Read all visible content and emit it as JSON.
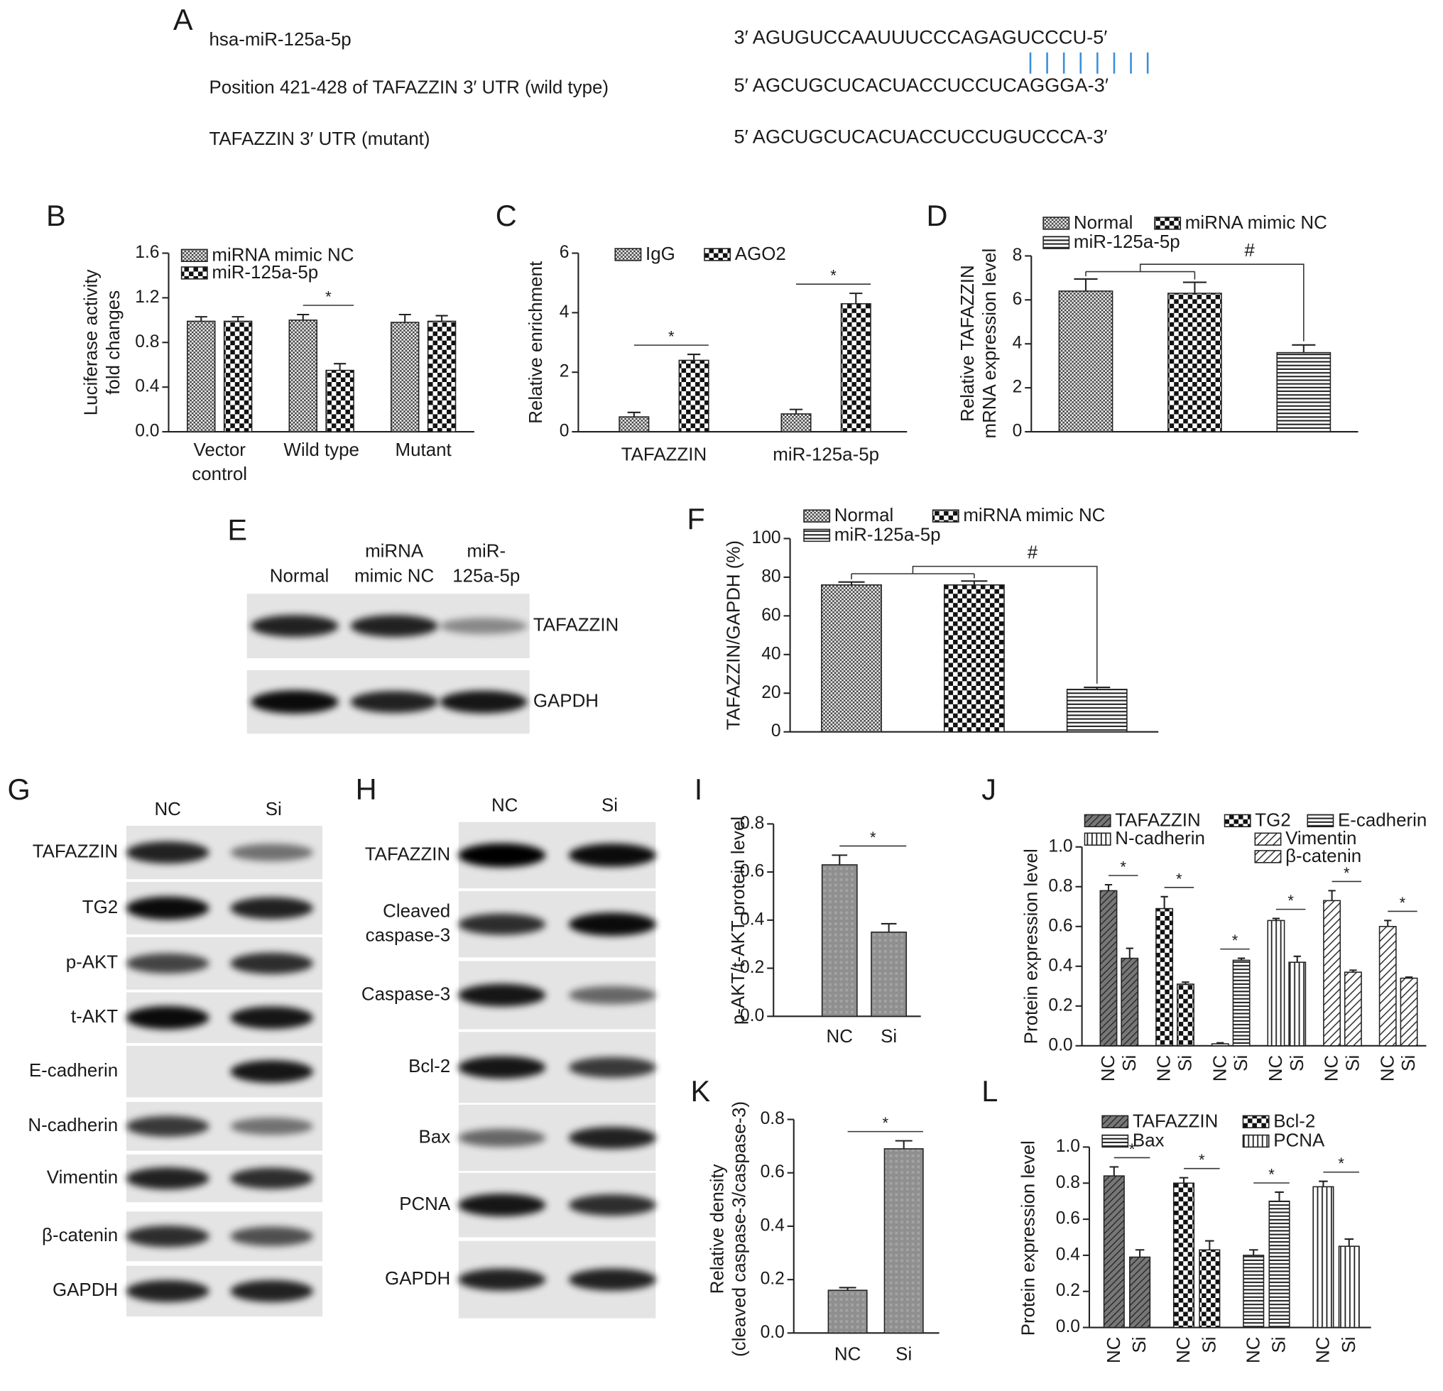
{
  "panel_a": {
    "label": "A",
    "rows": [
      {
        "name": "hsa-miR-125a-5p",
        "sequence": "3′ AGUGUCCAAUUUCCCAGAGUCCCU-5′"
      },
      {
        "name": "Position 421-428 of TAFAZZIN 3′ UTR (wild type)",
        "sequence": "5′ AGCUGCUCACUACCUCCUCAGGGA-3′"
      },
      {
        "name": "TAFAZZIN 3′ UTR (mutant)",
        "sequence": "5′  AGCUGCUCACUACCUCCUGUCCCA-3′"
      }
    ]
  },
  "blots": [
    {
      "label": "E",
      "lanes": [
        [
          "Normal"
        ],
        [
          "miRNA",
          "mimic NC"
        ],
        [
          "miR-",
          "125a-5p"
        ]
      ],
      "rows": [
        [
          "TAFAZZIN"
        ],
        [
          "GAPDH"
        ]
      ]
    },
    {
      "label": "G",
      "lanes": [
        [
          "NC"
        ],
        [
          "Si"
        ]
      ],
      "rows": [
        [
          "TAFAZZIN"
        ],
        [
          "TG2"
        ],
        [
          "p-AKT"
        ],
        [
          "t-AKT"
        ],
        [
          "E-cadherin"
        ],
        [
          "N-cadherin"
        ],
        [
          "Vimentin"
        ],
        [
          "β-catenin"
        ],
        [
          "GAPDH"
        ]
      ]
    },
    {
      "label": "H",
      "lanes": [
        [
          "NC"
        ],
        [
          "Si"
        ]
      ],
      "rows": [
        [
          "TAFAZZIN"
        ],
        [
          "Cleaved",
          "caspase-3"
        ],
        [
          "Caspase-3"
        ],
        [
          "Bcl-2"
        ],
        [
          "Bax"
        ],
        [
          "PCNA"
        ],
        [
          "GAPDH"
        ]
      ]
    }
  ],
  "chart_data": [
    {
      "type": "bar",
      "panel": "B",
      "ylabel": [
        "Luciferase activity",
        "fold changes"
      ],
      "group_by": "category",
      "categories": [
        [
          "Vector",
          "control"
        ],
        [
          "Wild type"
        ],
        [
          "Mutant"
        ]
      ],
      "series": [
        {
          "name": "miRNA mimic NC",
          "pattern": "fine-check",
          "values": [
            0.99,
            1.0,
            0.98
          ],
          "errors": [
            0.04,
            0.05,
            0.07
          ]
        },
        {
          "name": "miR-125a-5p",
          "pattern": "check",
          "values": [
            0.99,
            0.55,
            0.99
          ],
          "errors": [
            0.04,
            0.06,
            0.05
          ]
        }
      ],
      "ylim": [
        0,
        1.6
      ],
      "yticks": [
        {
          "value": 0,
          "label": "0.0"
        },
        0.4,
        0.8,
        1.2,
        1.6
      ],
      "annotations": [
        {
          "text": "*",
          "group": "Wild type"
        }
      ]
    },
    {
      "type": "bar",
      "panel": "C",
      "ylabel": [
        "Relative enrichment"
      ],
      "group_by": "category",
      "categories": [
        [
          "TAFAZZIN"
        ],
        [
          "miR-125a-5p"
        ]
      ],
      "series": [
        {
          "name": "IgG",
          "pattern": "fine-check",
          "values": [
            0.5,
            0.6
          ],
          "errors": [
            0.15,
            0.15
          ]
        },
        {
          "name": "AGO2",
          "pattern": "check",
          "values": [
            2.4,
            4.3
          ],
          "errors": [
            0.2,
            0.35
          ]
        }
      ],
      "ylim": [
        0,
        6
      ],
      "yticks": [
        0,
        2,
        4,
        6
      ],
      "annotations": [
        {
          "text": "*",
          "group": "TAFAZZIN"
        },
        {
          "text": "*",
          "group": "miR-125a-5p"
        }
      ]
    },
    {
      "type": "bar",
      "panel": "D",
      "ylabel": [
        "Relative TAFAZZIN",
        "mRNA expression level"
      ],
      "group_by": "series",
      "categories": [
        null
      ],
      "series": [
        {
          "name": "Normal",
          "pattern": "fine-check",
          "values": [
            6.4
          ],
          "errors": [
            0.55
          ]
        },
        {
          "name": "miRNA mimic NC",
          "pattern": "check",
          "values": [
            6.3
          ],
          "errors": [
            0.5
          ]
        },
        {
          "name": "miR-125a-5p",
          "pattern": "hstripe",
          "values": [
            3.6
          ],
          "errors": [
            0.35
          ]
        }
      ],
      "ylim": [
        0,
        8
      ],
      "yticks": [
        0,
        2,
        4,
        6,
        8
      ],
      "annotations": [
        {
          "text": "#",
          "style": "bracket"
        }
      ]
    },
    {
      "type": "bar",
      "panel": "F",
      "ylabel": [
        "TAFAZZIN/GAPDH (%)"
      ],
      "group_by": "series",
      "categories": [
        null
      ],
      "series": [
        {
          "name": "Normal",
          "pattern": "fine-check",
          "values": [
            76
          ],
          "errors": [
            1.5
          ]
        },
        {
          "name": "miRNA mimic NC",
          "pattern": "check",
          "values": [
            76
          ],
          "errors": [
            2
          ]
        },
        {
          "name": "miR-125a-5p",
          "pattern": "hstripe",
          "values": [
            22
          ],
          "errors": [
            1
          ]
        }
      ],
      "ylim": [
        0,
        100
      ],
      "yticks": [
        0,
        20,
        40,
        60,
        80,
        100
      ],
      "annotations": [
        {
          "text": "#",
          "style": "bracket"
        }
      ]
    },
    {
      "type": "bar",
      "panel": "I",
      "ylabel": [
        "p-AKT/t-AKT protein level"
      ],
      "group_by": "category",
      "categories": [
        [
          "NC"
        ],
        [
          "Si"
        ]
      ],
      "series": [
        {
          "pattern": "gray",
          "values": [
            0.63,
            0.35
          ],
          "errors": [
            0.04,
            0.035
          ]
        }
      ],
      "ylim": [
        0,
        0.8
      ],
      "yticks": [
        {
          "value": 0,
          "label": "0.0"
        },
        0.2,
        0.4,
        0.6,
        0.8
      ],
      "annotations": [
        {
          "text": "*"
        }
      ]
    },
    {
      "type": "bar",
      "panel": "J",
      "ylabel": [
        "Protein expression level"
      ],
      "group_by": "series",
      "categories": [
        [
          "NC"
        ],
        [
          "Si"
        ]
      ],
      "series": [
        {
          "name": "TAFAZZIN",
          "pattern": "dark-diag",
          "values": [
            0.78,
            0.44
          ],
          "errors": [
            0.03,
            0.05
          ]
        },
        {
          "name": "TG2",
          "pattern": "check",
          "values": [
            0.69,
            0.31
          ],
          "errors": [
            0.06,
            0.01
          ]
        },
        {
          "name": "E-cadherin",
          "pattern": "hstripe",
          "values": [
            0.01,
            0.43
          ],
          "errors": [
            0.005,
            0.01
          ]
        },
        {
          "name": "N-cadherin",
          "pattern": "vstripe",
          "values": [
            0.63,
            0.42
          ],
          "errors": [
            0.01,
            0.03
          ]
        },
        {
          "name": "Vimentin",
          "pattern": "diag",
          "values": [
            0.73,
            0.37
          ],
          "errors": [
            0.05,
            0.01
          ]
        },
        {
          "name": "β-catenin",
          "pattern": "diag",
          "values": [
            0.6,
            0.34
          ],
          "errors": [
            0.03,
            0.005
          ]
        }
      ],
      "ylim": [
        0,
        1.0
      ],
      "yticks": [
        {
          "value": 0,
          "label": "0.0"
        },
        0.2,
        0.4,
        0.6,
        0.8,
        {
          "value": 1.0,
          "label": "1.0"
        }
      ],
      "annotations": [
        {
          "text": "*",
          "group": "TAFAZZIN"
        },
        {
          "text": "*",
          "group": "TG2"
        },
        {
          "text": "*",
          "group": "E-cadherin"
        },
        {
          "text": "*",
          "group": "N-cadherin"
        },
        {
          "text": "*",
          "group": "Vimentin"
        },
        {
          "text": "*",
          "group": "β-catenin"
        }
      ]
    },
    {
      "type": "bar",
      "panel": "K",
      "ylabel": [
        "Relative density",
        "(cleaved caspase-3/caspase-3)"
      ],
      "group_by": "category",
      "categories": [
        [
          "NC"
        ],
        [
          "Si"
        ]
      ],
      "series": [
        {
          "pattern": "gray",
          "values": [
            0.16,
            0.69
          ],
          "errors": [
            0.01,
            0.03
          ]
        }
      ],
      "ylim": [
        0,
        0.8
      ],
      "yticks": [
        {
          "value": 0,
          "label": "0.0"
        },
        0.2,
        0.4,
        0.6,
        0.8
      ],
      "annotations": [
        {
          "text": "*"
        }
      ]
    },
    {
      "type": "bar",
      "panel": "L",
      "ylabel": [
        "Protein expression level"
      ],
      "group_by": "series",
      "categories": [
        [
          "NC"
        ],
        [
          "Si"
        ]
      ],
      "series": [
        {
          "name": "TAFAZZIN",
          "pattern": "dark-diag",
          "values": [
            0.84,
            0.39
          ],
          "errors": [
            0.05,
            0.04
          ]
        },
        {
          "name": "Bcl-2",
          "pattern": "check",
          "values": [
            0.8,
            0.43
          ],
          "errors": [
            0.03,
            0.05
          ]
        },
        {
          "name": "Bax",
          "pattern": "hstripe",
          "values": [
            0.4,
            0.7
          ],
          "errors": [
            0.03,
            0.05
          ]
        },
        {
          "name": "PCNA",
          "pattern": "vstripe",
          "values": [
            0.78,
            0.45
          ],
          "errors": [
            0.03,
            0.04
          ]
        }
      ],
      "ylim": [
        0,
        1.0
      ],
      "yticks": [
        {
          "value": 0,
          "label": "0.0"
        },
        0.2,
        0.4,
        0.6,
        0.8,
        {
          "value": 1.0,
          "label": "1.0"
        }
      ],
      "annotations": [
        {
          "text": "*",
          "group": "TAFAZZIN"
        },
        {
          "text": "*",
          "group": "Bcl-2"
        },
        {
          "text": "*",
          "group": "Bax"
        },
        {
          "text": "*",
          "group": "PCNA"
        }
      ]
    }
  ]
}
